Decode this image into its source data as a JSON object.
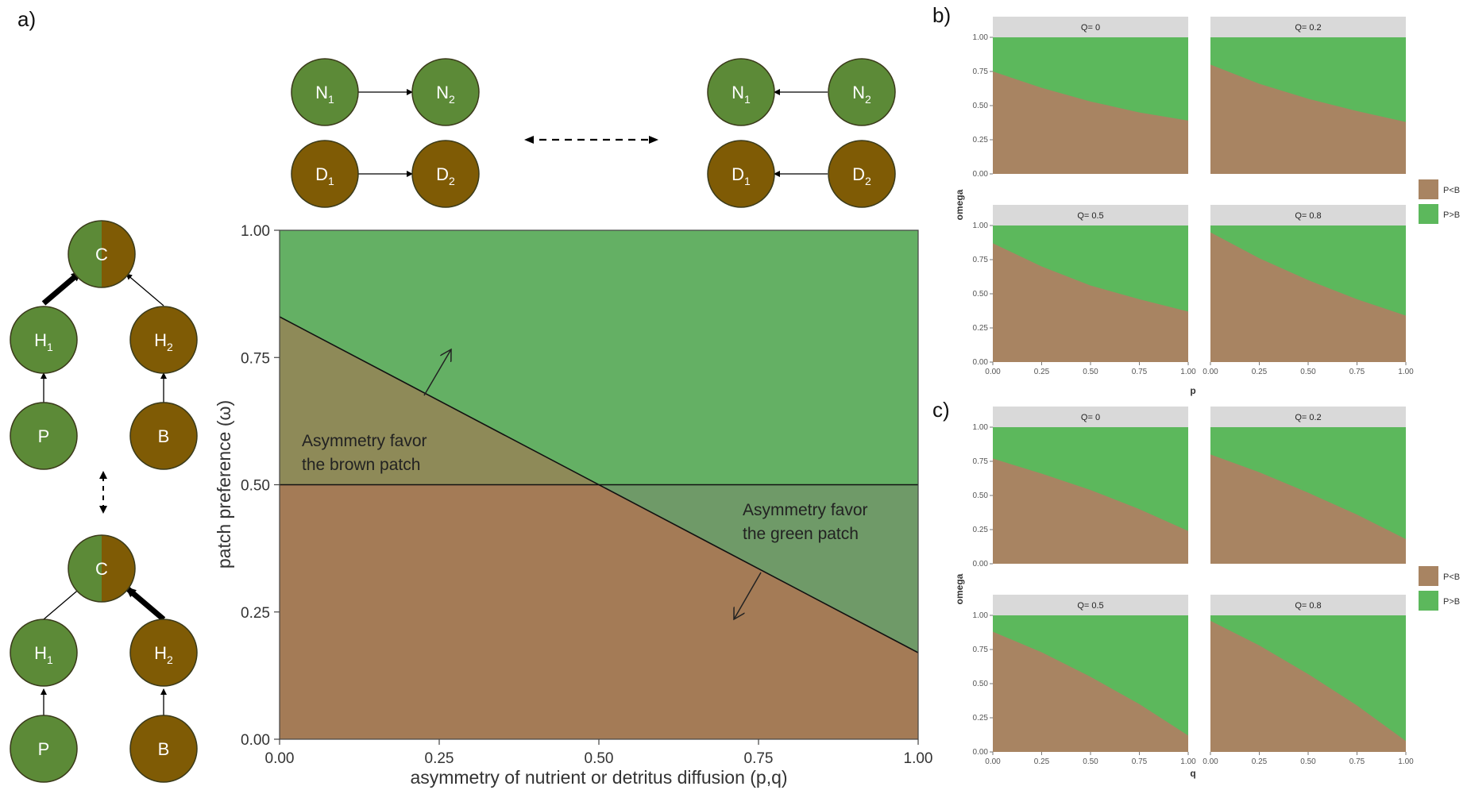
{
  "panel_labels": {
    "a": "a)",
    "b": "b)",
    "c": "c)"
  },
  "colors": {
    "green": "#5c8a37",
    "brown": "#7f5b05",
    "node_stroke": "#3a3a1a",
    "region_green": "#64b064",
    "region_brown": "#a47b56",
    "region_mix_top": "#8e8a58",
    "region_mix_bottom": "#6f9a68",
    "plot_green": "#5cb85c",
    "plot_brown": "#a88462",
    "strip": "#d9d9d9"
  },
  "nodes": {
    "N1": {
      "base": "N",
      "sub": "1"
    },
    "N2": {
      "base": "N",
      "sub": "2"
    },
    "D1": {
      "base": "D",
      "sub": "1"
    },
    "D2": {
      "base": "D",
      "sub": "2"
    },
    "C": "C",
    "H1": {
      "base": "H",
      "sub": "1"
    },
    "H2": {
      "base": "H",
      "sub": "2"
    },
    "P": "P",
    "B": "B"
  },
  "chart_data": [
    {
      "id": "main",
      "type": "area",
      "xlabel": "asymmetry of nutrient or detritus diffusion (p,q)",
      "ylabel": "patch preference (ω)",
      "xlim": [
        0,
        1
      ],
      "ylim": [
        0,
        1
      ],
      "x_ticks": [
        "0.00",
        "0.25",
        "0.50",
        "0.75",
        "1.00"
      ],
      "y_ticks": [
        "0.00",
        "0.25",
        "0.50",
        "0.75",
        "1.00"
      ],
      "boundary": {
        "x": [
          0,
          1
        ],
        "y": [
          0.83,
          0.17
        ]
      },
      "reference_line_y": 0.5,
      "annotations": [
        {
          "line1": "Asymmetry  favor",
          "line2": "the brown patch"
        },
        {
          "line1": "Asymmetry  favor",
          "line2": "the green patch"
        }
      ]
    },
    {
      "id": "b",
      "type": "area",
      "xlabel": "p",
      "ylabel": "omega",
      "xlim": [
        0,
        1
      ],
      "ylim": [
        0,
        1
      ],
      "x_ticks": [
        "0.00",
        "0.25",
        "0.50",
        "0.75",
        "1.00"
      ],
      "y_ticks": [
        "0.00",
        "0.25",
        "0.50",
        "0.75",
        "1.00"
      ],
      "legend": [
        "P<B",
        "P>B"
      ],
      "facets": [
        {
          "label": "Q= 0",
          "x": [
            0,
            0.25,
            0.5,
            0.75,
            1
          ],
          "y": [
            0.75,
            0.63,
            0.53,
            0.45,
            0.39
          ]
        },
        {
          "label": "Q= 0.2",
          "x": [
            0,
            0.25,
            0.5,
            0.75,
            1
          ],
          "y": [
            0.8,
            0.66,
            0.55,
            0.46,
            0.38
          ]
        },
        {
          "label": "Q= 0.5",
          "x": [
            0,
            0.25,
            0.5,
            0.75,
            1
          ],
          "y": [
            0.87,
            0.7,
            0.56,
            0.46,
            0.37
          ]
        },
        {
          "label": "Q= 0.8",
          "x": [
            0,
            0.25,
            0.5,
            0.75,
            1
          ],
          "y": [
            0.95,
            0.76,
            0.6,
            0.46,
            0.34
          ]
        }
      ]
    },
    {
      "id": "c",
      "type": "area",
      "xlabel": "q",
      "ylabel": "omega",
      "xlim": [
        0,
        1
      ],
      "ylim": [
        0,
        1
      ],
      "x_ticks": [
        "0.00",
        "0.25",
        "0.50",
        "0.75",
        "1.00"
      ],
      "y_ticks": [
        "0.00",
        "0.25",
        "0.50",
        "0.75",
        "1.00"
      ],
      "legend": [
        "P<B",
        "P>B"
      ],
      "facets": [
        {
          "label": "Q= 0",
          "x": [
            0,
            0.25,
            0.5,
            0.75,
            1
          ],
          "y": [
            0.77,
            0.66,
            0.54,
            0.4,
            0.24
          ]
        },
        {
          "label": "Q= 0.2",
          "x": [
            0,
            0.25,
            0.5,
            0.75,
            1
          ],
          "y": [
            0.8,
            0.67,
            0.52,
            0.36,
            0.18
          ]
        },
        {
          "label": "Q= 0.5",
          "x": [
            0,
            0.25,
            0.5,
            0.75,
            1
          ],
          "y": [
            0.88,
            0.73,
            0.55,
            0.35,
            0.12
          ]
        },
        {
          "label": "Q= 0.8",
          "x": [
            0,
            0.25,
            0.5,
            0.75,
            1
          ],
          "y": [
            0.96,
            0.78,
            0.57,
            0.34,
            0.08
          ]
        }
      ]
    }
  ]
}
